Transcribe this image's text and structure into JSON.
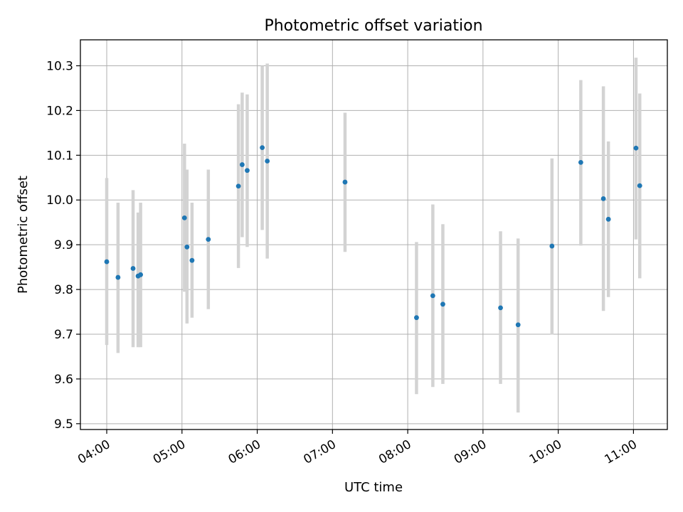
{
  "chart_data": {
    "type": "scatter",
    "title": "Photometric offset variation",
    "xlabel": "UTC time",
    "ylabel": "Photometric offset",
    "x_unit": "time of day (HH:MM UTC)",
    "xlim": [
      "03:39",
      "11:27"
    ],
    "ylim": [
      9.487,
      10.358
    ],
    "x_ticks": [
      "04:00",
      "05:00",
      "06:00",
      "07:00",
      "08:00",
      "09:00",
      "10:00",
      "11:00"
    ],
    "y_ticks": [
      "9.5",
      "9.6",
      "9.7",
      "9.8",
      "9.9",
      "10.0",
      "10.1",
      "10.2",
      "10.3"
    ],
    "y_tick_values": [
      9.5,
      9.6,
      9.7,
      9.8,
      9.9,
      10.0,
      10.1,
      10.2,
      10.3
    ],
    "grid": true,
    "legend": "none",
    "colors": {
      "points": "#1f77b4",
      "error_bars": "#d3d3d3",
      "grid": "#b0b0b0"
    },
    "points": [
      {
        "x": "04:00",
        "y": 9.862,
        "ymin": 9.676,
        "ymax": 10.049
      },
      {
        "x": "04:09",
        "y": 9.827,
        "ymin": 9.658,
        "ymax": 9.994
      },
      {
        "x": "04:21",
        "y": 9.847,
        "ymin": 9.671,
        "ymax": 10.022
      },
      {
        "x": "04:25",
        "y": 9.83,
        "ymin": 9.671,
        "ymax": 9.972
      },
      {
        "x": "04:27",
        "y": 9.833,
        "ymin": 9.671,
        "ymax": 9.994
      },
      {
        "x": "05:02",
        "y": 9.96,
        "ymin": 9.795,
        "ymax": 10.126
      },
      {
        "x": "05:04",
        "y": 9.895,
        "ymin": 9.724,
        "ymax": 10.068
      },
      {
        "x": "05:08",
        "y": 9.865,
        "ymin": 9.737,
        "ymax": 9.994
      },
      {
        "x": "05:21",
        "y": 9.912,
        "ymin": 9.756,
        "ymax": 10.068
      },
      {
        "x": "05:45",
        "y": 10.031,
        "ymin": 9.848,
        "ymax": 10.214
      },
      {
        "x": "05:48",
        "y": 10.079,
        "ymin": 9.917,
        "ymax": 10.24
      },
      {
        "x": "05:52",
        "y": 10.066,
        "ymin": 9.895,
        "ymax": 10.236
      },
      {
        "x": "06:04",
        "y": 10.117,
        "ymin": 9.933,
        "ymax": 10.3
      },
      {
        "x": "06:08",
        "y": 10.087,
        "ymin": 9.869,
        "ymax": 10.305
      },
      {
        "x": "07:10",
        "y": 10.04,
        "ymin": 9.884,
        "ymax": 10.195
      },
      {
        "x": "08:07",
        "y": 9.737,
        "ymin": 9.566,
        "ymax": 9.906
      },
      {
        "x": "08:20",
        "y": 9.786,
        "ymin": 9.582,
        "ymax": 9.99
      },
      {
        "x": "08:28",
        "y": 9.767,
        "ymin": 9.589,
        "ymax": 9.946
      },
      {
        "x": "09:14",
        "y": 9.759,
        "ymin": 9.589,
        "ymax": 9.93
      },
      {
        "x": "09:28",
        "y": 9.721,
        "ymin": 9.525,
        "ymax": 9.914
      },
      {
        "x": "09:55",
        "y": 9.897,
        "ymin": 9.699,
        "ymax": 10.093
      },
      {
        "x": "10:18",
        "y": 10.084,
        "ymin": 9.898,
        "ymax": 10.268
      },
      {
        "x": "10:36",
        "y": 10.003,
        "ymin": 9.752,
        "ymax": 10.254
      },
      {
        "x": "10:40",
        "y": 9.957,
        "ymin": 9.783,
        "ymax": 10.131
      },
      {
        "x": "11:02",
        "y": 10.116,
        "ymin": 9.912,
        "ymax": 10.318
      },
      {
        "x": "11:05",
        "y": 10.032,
        "ymin": 9.825,
        "ymax": 10.238
      }
    ]
  }
}
